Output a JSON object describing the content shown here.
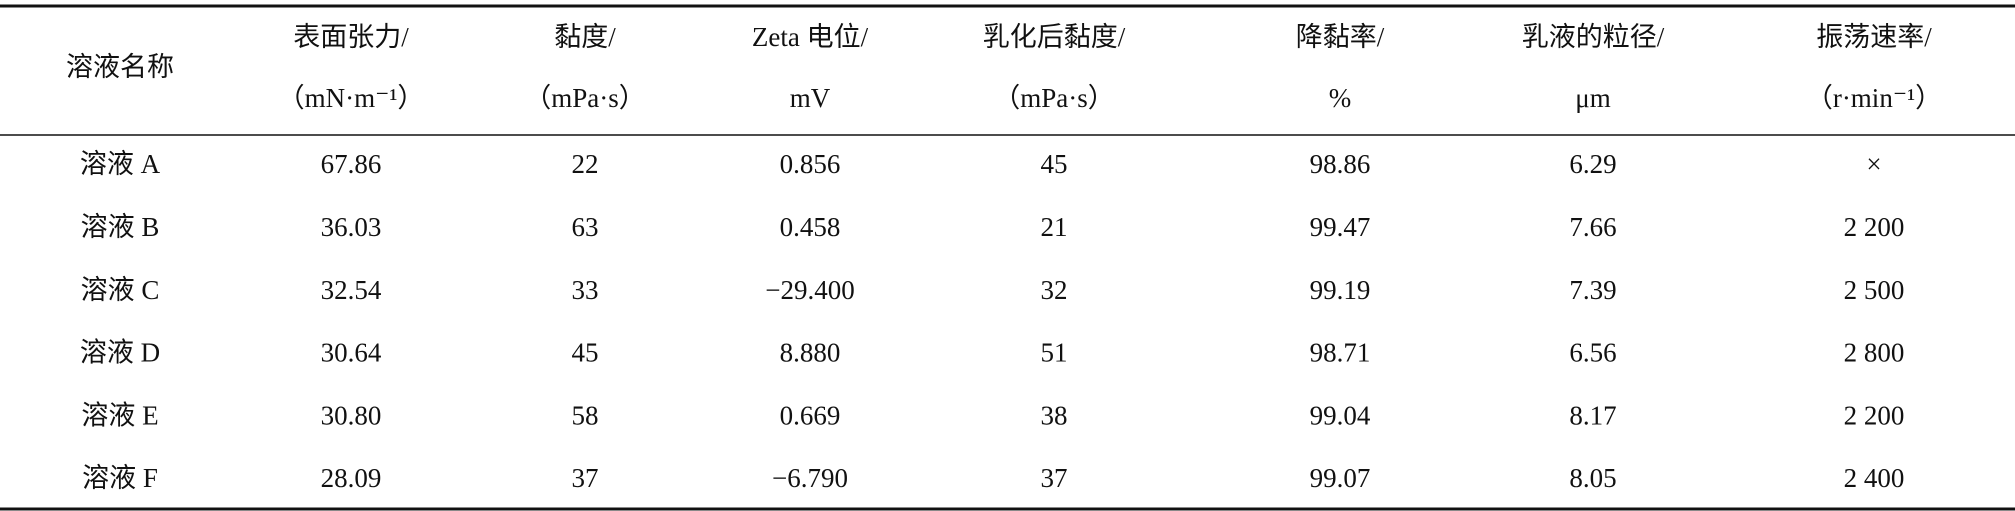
{
  "table": {
    "header": [
      [
        "溶液名称"
      ],
      [
        "表面张力/",
        "（mN·m⁻¹）"
      ],
      [
        "黏度/",
        "（mPa·s）"
      ],
      [
        "Zeta 电位/",
        "mV"
      ],
      [
        "乳化后黏度/",
        "（mPa·s）"
      ],
      [
        "降黏率/",
        "%"
      ],
      [
        "乳液的粒径/",
        "μm"
      ],
      [
        "振荡速率/",
        "（r·min⁻¹）"
      ]
    ],
    "rows": [
      [
        "溶液 A",
        "67.86",
        "22",
        "0.856",
        "45",
        "98.86",
        "6.29",
        "×"
      ],
      [
        "溶液 B",
        "36.03",
        "63",
        "0.458",
        "21",
        "99.47",
        "7.66",
        "2 200"
      ],
      [
        "溶液 C",
        "32.54",
        "33",
        "−29.400",
        "32",
        "99.19",
        "7.39",
        "2 500"
      ],
      [
        "溶液 D",
        "30.64",
        "45",
        "8.880",
        "51",
        "98.71",
        "6.56",
        "2 800"
      ],
      [
        "溶液 E",
        "30.80",
        "58",
        "0.669",
        "38",
        "99.04",
        "8.17",
        "2 200"
      ],
      [
        "溶液 F",
        "28.09",
        "37",
        "−6.790",
        "37",
        "99.07",
        "8.05",
        "2 400"
      ]
    ]
  }
}
